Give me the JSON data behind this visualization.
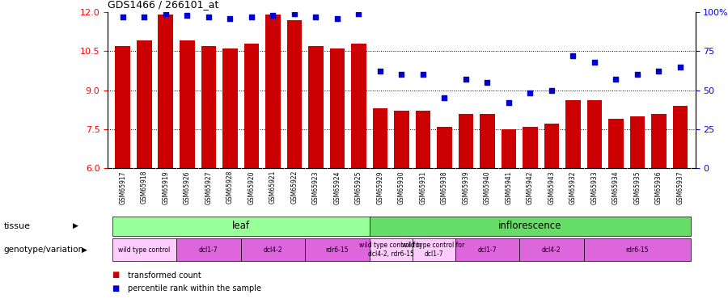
{
  "title": "GDS1466 / 266101_at",
  "samples": [
    "GSM65917",
    "GSM65918",
    "GSM65919",
    "GSM65926",
    "GSM65927",
    "GSM65928",
    "GSM65920",
    "GSM65921",
    "GSM65922",
    "GSM65923",
    "GSM65924",
    "GSM65925",
    "GSM65929",
    "GSM65930",
    "GSM65931",
    "GSM65938",
    "GSM65939",
    "GSM65940",
    "GSM65941",
    "GSM65942",
    "GSM65943",
    "GSM65932",
    "GSM65933",
    "GSM65934",
    "GSM65935",
    "GSM65936",
    "GSM65937"
  ],
  "bar_values": [
    10.7,
    10.9,
    11.9,
    10.9,
    10.7,
    10.6,
    10.8,
    11.9,
    11.7,
    10.7,
    10.6,
    10.8,
    8.3,
    8.2,
    8.2,
    7.6,
    8.1,
    8.1,
    7.5,
    7.6,
    7.7,
    8.6,
    8.6,
    7.9,
    8.0,
    8.1,
    8.4
  ],
  "percentile_values": [
    97,
    97,
    99,
    98,
    97,
    96,
    97,
    98,
    99,
    97,
    96,
    99,
    62,
    60,
    60,
    45,
    57,
    55,
    42,
    48,
    50,
    72,
    68,
    57,
    60,
    62,
    65
  ],
  "ylim_left": [
    6,
    12
  ],
  "ylim_right": [
    0,
    100
  ],
  "yticks_left": [
    6,
    7.5,
    9,
    10.5,
    12
  ],
  "yticks_right": [
    0,
    25,
    50,
    75,
    100
  ],
  "bar_color": "#cc0000",
  "scatter_color": "#0000cc",
  "tissue_groups": [
    {
      "label": "leaf",
      "start": 0,
      "end": 11,
      "color": "#99ff99"
    },
    {
      "label": "inflorescence",
      "start": 12,
      "end": 26,
      "color": "#66dd66"
    }
  ],
  "genotype_groups": [
    {
      "label": "wild type control",
      "start": 0,
      "end": 2,
      "color": "#ffccff"
    },
    {
      "label": "dcl1-7",
      "start": 3,
      "end": 5,
      "color": "#dd66dd"
    },
    {
      "label": "dcl4-2",
      "start": 6,
      "end": 8,
      "color": "#dd66dd"
    },
    {
      "label": "rdr6-15",
      "start": 9,
      "end": 11,
      "color": "#dd66dd"
    },
    {
      "label": "wild type control for\ndcl4-2, rdr6-15",
      "start": 12,
      "end": 13,
      "color": "#ffccff"
    },
    {
      "label": "wild type control for\ndcl1-7",
      "start": 14,
      "end": 15,
      "color": "#ffccff"
    },
    {
      "label": "dcl1-7",
      "start": 16,
      "end": 18,
      "color": "#dd66dd"
    },
    {
      "label": "dcl4-2",
      "start": 19,
      "end": 21,
      "color": "#dd66dd"
    },
    {
      "label": "rdr6-15",
      "start": 22,
      "end": 26,
      "color": "#dd66dd"
    }
  ],
  "tissue_label": "tissue",
  "genotype_label": "genotype/variation",
  "legend_items": [
    {
      "label": "transformed count",
      "color": "#cc0000"
    },
    {
      "label": "percentile rank within the sample",
      "color": "#0000cc"
    }
  ],
  "grid_yticks": [
    7.5,
    9.0,
    10.5
  ],
  "bar_width": 0.7,
  "xticklabel_bg": "#dddddd"
}
